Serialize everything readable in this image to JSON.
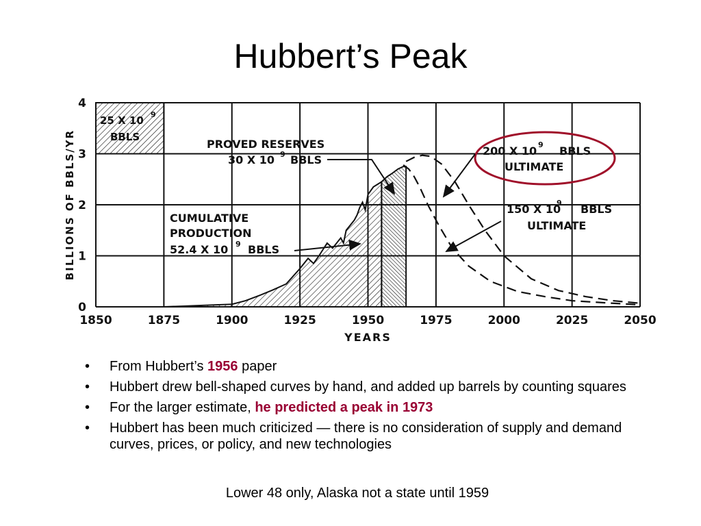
{
  "slide": {
    "title": "Hubbert’s Peak",
    "bullets": [
      {
        "parts": [
          {
            "text": "From Hubbert’s "
          },
          {
            "text": "1956",
            "highlight": true
          },
          {
            "text": " paper"
          }
        ]
      },
      {
        "parts": [
          {
            "text": "Hubbert drew bell-shaped curves by hand, and added up barrels by counting squares"
          }
        ]
      },
      {
        "parts": [
          {
            "text": "For the larger estimate, "
          },
          {
            "text": "he predicted a peak in 1973",
            "highlight": true
          }
        ]
      },
      {
        "parts": [
          {
            "text": "Hubbert has been much criticized — there is no consideration of supply and demand curves, prices, or policy, and new technologies"
          }
        ]
      }
    ],
    "bullet_char": "•",
    "footnote": "Lower 48 only, Alaska not a state until 1959",
    "colors": {
      "highlight": "#990033",
      "ellipse": "#a0102a",
      "ink": "#111111"
    }
  },
  "chart_data": {
    "type": "area",
    "xlabel": "YEARS",
    "ylabel": "BILLIONS OF BBLS/YR",
    "xlim": [
      1850,
      2050
    ],
    "ylim": [
      0,
      4
    ],
    "x_ticks": [
      "1850",
      "1875",
      "1900",
      "1925",
      "1950",
      "1975",
      "2000",
      "2025",
      "2050"
    ],
    "y_ticks": [
      "0",
      "1",
      "2",
      "3",
      "4"
    ],
    "grid": true,
    "series": [
      {
        "role": "cumulative_production",
        "x": [
          1875,
          1890,
          1900,
          1905,
          1910,
          1915,
          1920,
          1925,
          1928,
          1930,
          1932,
          1935,
          1937,
          1940,
          1941,
          1942,
          1945,
          1946,
          1947,
          1948,
          1949,
          1950,
          1952,
          1955
        ],
        "y": [
          0,
          0.03,
          0.05,
          0.12,
          0.22,
          0.33,
          0.45,
          0.75,
          0.95,
          0.85,
          1.0,
          1.25,
          1.15,
          1.35,
          1.25,
          1.5,
          1.7,
          1.8,
          1.95,
          2.05,
          1.9,
          2.2,
          2.35,
          2.45
        ]
      },
      {
        "role": "proved_reserves",
        "x": [
          1955,
          1957,
          1959,
          1961,
          1963,
          1964
        ],
        "y": [
          2.45,
          2.55,
          2.62,
          2.7,
          2.75,
          2.75
        ]
      },
      {
        "role": "ultimate_200",
        "dashed": true,
        "x": [
          1964,
          1967,
          1970,
          1973,
          1977,
          1982,
          1987,
          1993,
          2000,
          2010,
          2020,
          2030,
          2040,
          2050
        ],
        "y": [
          2.85,
          2.93,
          2.97,
          2.95,
          2.8,
          2.45,
          2.0,
          1.5,
          1.0,
          0.55,
          0.32,
          0.2,
          0.12,
          0.07
        ]
      },
      {
        "role": "ultimate_150",
        "dashed": true,
        "x": [
          1963,
          1965,
          1967,
          1969,
          1972,
          1976,
          1981,
          1987,
          1995,
          2005,
          2015,
          2025,
          2040,
          2050
        ],
        "y": [
          2.78,
          2.7,
          2.55,
          2.35,
          2.0,
          1.6,
          1.15,
          0.8,
          0.5,
          0.3,
          0.2,
          0.12,
          0.07,
          0.04
        ]
      }
    ],
    "annotations": {
      "scale_box": [
        "25 X 10",
        "9",
        "BBLS"
      ],
      "proved": [
        "PROVED  RESERVES",
        "30 X 10",
        "9",
        "BBLS"
      ],
      "cumulative": [
        "CUMULATIVE",
        "PRODUCTION",
        "52.4 X 10",
        "9",
        "BBLS"
      ],
      "ultimate200": [
        "200 X 10",
        "9",
        "BBLS",
        "ULTIMATE"
      ],
      "ultimate150": [
        "150 X 10",
        "9",
        "BBLS",
        "ULTIMATE"
      ]
    }
  }
}
